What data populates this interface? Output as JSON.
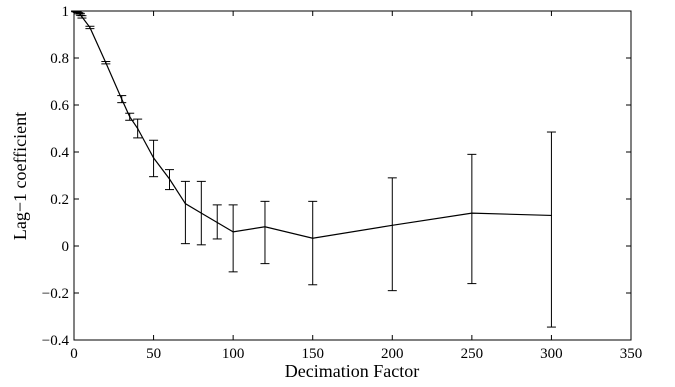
{
  "chart_data": {
    "type": "line",
    "title": "",
    "xlabel": "Decimation Factor",
    "ylabel": "Lag−1 coefficient",
    "xlim": [
      0,
      350
    ],
    "ylim": [
      -0.4,
      1
    ],
    "xticks": [
      0,
      50,
      100,
      150,
      200,
      250,
      300,
      350
    ],
    "yticks": [
      -0.4,
      -0.2,
      0,
      0.2,
      0.4,
      0.6,
      0.8,
      1
    ],
    "xtick_labels": [
      "0",
      "50",
      "100",
      "150",
      "200",
      "250",
      "300",
      "350"
    ],
    "ytick_labels": [
      "−0.4",
      "−0.2",
      "0",
      "0.2",
      "0.4",
      "0.6",
      "0.8",
      "1"
    ],
    "grid": false,
    "legend": "none",
    "series": [
      {
        "x": [
          1,
          2,
          3,
          4,
          5,
          10,
          20,
          30,
          35,
          40,
          50,
          60,
          70,
          80,
          90,
          100,
          120,
          150,
          200,
          250,
          300
        ],
        "y": [
          0.998,
          0.995,
          0.99,
          0.985,
          0.975,
          0.93,
          0.78,
          0.625,
          0.55,
          0.5,
          0.375,
          0.285,
          0.18,
          0.14,
          0.1,
          0.06,
          0.082,
          0.033,
          0.088,
          0.14,
          0.13
        ],
        "err_low": [
          0.997,
          0.994,
          0.988,
          0.982,
          0.97,
          0.925,
          0.775,
          0.61,
          0.535,
          0.46,
          0.295,
          0.24,
          0.01,
          0.005,
          0.03,
          -0.11,
          -0.075,
          -0.165,
          -0.19,
          -0.16,
          -0.345
        ],
        "err_high": [
          1.0,
          0.997,
          0.993,
          0.99,
          0.98,
          0.935,
          0.785,
          0.64,
          0.565,
          0.54,
          0.45,
          0.325,
          0.275,
          0.275,
          0.175,
          0.175,
          0.19,
          0.19,
          0.29,
          0.39,
          0.485
        ]
      }
    ]
  }
}
